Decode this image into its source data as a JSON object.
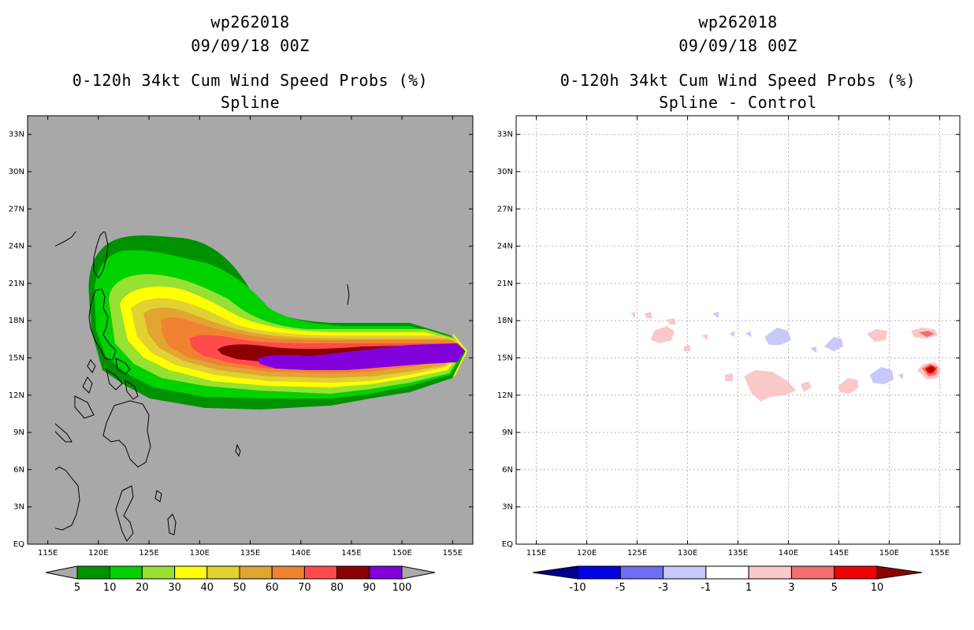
{
  "left_panel": {
    "title_line1": "wp262018",
    "title_line2": "09/09/18 00Z",
    "title_line3": "0-120h 34kt Cum Wind Speed Probs (%)",
    "title_line4": "Spline",
    "colorbar": {
      "colors": [
        "#009100",
        "#00d200",
        "#96e132",
        "#ffff00",
        "#e1d232",
        "#e1a532",
        "#f08232",
        "#ff4b4b",
        "#8c0000",
        "#8200dc"
      ],
      "end_color": "#aaaaaa",
      "labels": [
        "5",
        "10",
        "20",
        "30",
        "40",
        "50",
        "60",
        "70",
        "80",
        "90",
        "100"
      ]
    }
  },
  "right_panel": {
    "title_line1": "wp262018",
    "title_line2": "09/09/18 00Z",
    "title_line3": "0-120h 34kt Cum Wind Speed Probs (%)",
    "title_line4": "Spline - Control",
    "colorbar": {
      "colors": [
        "#0000e6",
        "#6e6ef5",
        "#c8c8fa",
        "#ffffff",
        "#fac8c8",
        "#f56e6e",
        "#f00000"
      ],
      "end_colors": [
        "#00008c",
        "#8c0000"
      ],
      "labels": [
        "-10",
        "-5",
        "-3",
        "-1",
        "1",
        "3",
        "5",
        "10"
      ]
    }
  },
  "axes": {
    "lon_labels": [
      "115E",
      "120E",
      "125E",
      "130E",
      "135E",
      "140E",
      "145E",
      "150E",
      "155E"
    ],
    "lat_labels": [
      "EQ",
      "3N",
      "6N",
      "9N",
      "12N",
      "15N",
      "18N",
      "21N",
      "24N",
      "27N",
      "30N",
      "33N"
    ],
    "lon_range": [
      113,
      157
    ],
    "lat_range": [
      0,
      34.5
    ]
  }
}
